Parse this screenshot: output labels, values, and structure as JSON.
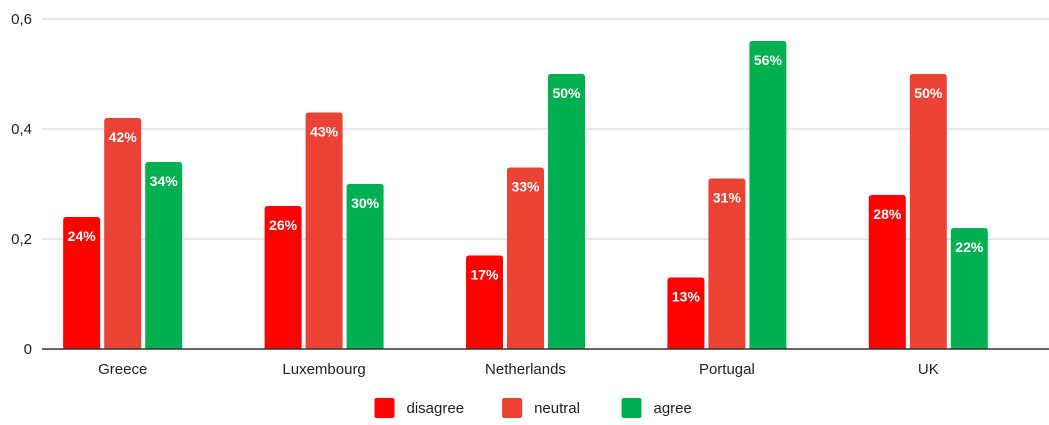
{
  "chart_data": {
    "type": "bar",
    "categories": [
      "Greece",
      "Luxembourg",
      "Netherlands",
      "Portugal",
      "UK"
    ],
    "series": [
      {
        "name": "disagree",
        "color": "#ff0000",
        "values": [
          0.24,
          0.26,
          0.17,
          0.13,
          0.28
        ],
        "labels": [
          "24%",
          "26%",
          "17%",
          "13%",
          "28%"
        ]
      },
      {
        "name": "neutral",
        "color": "#ea4335",
        "values": [
          0.42,
          0.43,
          0.33,
          0.31,
          0.5
        ],
        "labels": [
          "42%",
          "43%",
          "33%",
          "31%",
          "50%"
        ]
      },
      {
        "name": "agree",
        "color": "#00b050",
        "values": [
          0.34,
          0.3,
          0.5,
          0.56,
          0.22
        ],
        "labels": [
          "34%",
          "30%",
          "50%",
          "56%",
          "22%"
        ]
      }
    ],
    "yticks": [
      0,
      0.2,
      0.4,
      0.6
    ],
    "ytick_labels": [
      "0",
      "0,2",
      "0,4",
      "0,6"
    ],
    "ylim": [
      0,
      0.6
    ],
    "grid": true,
    "legend_position": "bottom"
  }
}
